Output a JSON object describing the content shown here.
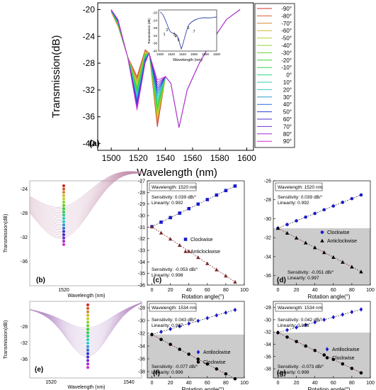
{
  "colors": {
    "c1": "#1a1acc",
    "c2": "#7a2828",
    "c3": "#000000",
    "grey": "#cccccc",
    "plus": "#cc2255"
  },
  "chart_data": [
    {
      "id": "a",
      "type": "line",
      "panel_label": "(a)",
      "xlabel": "Wavelength (nm)",
      "ylabel": "Transmission(dB)",
      "xlim": [
        1490,
        1605
      ],
      "ylim": [
        -41,
        -19
      ],
      "xticks": [
        "1500",
        "1520",
        "1540",
        "1560",
        "1580",
        "1600"
      ],
      "yticks": [
        "-20",
        "-24",
        "-28",
        "-32",
        "-36",
        "-40"
      ],
      "legend": [
        "-90°",
        "-80°",
        "-70°",
        "-60°",
        "-50°",
        "-40°",
        "-30°",
        "-20°",
        "-10°",
        "0°",
        "10°",
        "20°",
        "30°",
        "40°",
        "50°",
        "60°",
        "70°",
        "80°",
        "90°"
      ],
      "legend_position": "right",
      "inset": {
        "xlabel": "Wavelength (nm)",
        "ylabel": "Transmission (dB)",
        "xticks": [
          "1500",
          "1520",
          "1540",
          "1560",
          "1580",
          "1600"
        ],
        "yticks": [
          "-20",
          "-24",
          "-28",
          "-32",
          "-36",
          "-40"
        ],
        "points": [
          "1",
          "2",
          "3",
          "4",
          "5",
          "6",
          "7"
        ]
      }
    },
    {
      "id": "b",
      "type": "line",
      "panel_label": "(b)",
      "xlabel": "Wavelength (nm)",
      "ylabel": "Transmission(dB)",
      "xticks": [
        "1520"
      ],
      "yticks": [
        "-24",
        "-28",
        "-32",
        "-36"
      ]
    },
    {
      "id": "c",
      "type": "scatter",
      "panel_label": "(c)",
      "xlabel": "Rotation angle(°)",
      "ylim": [
        -36,
        -27
      ],
      "yticks": [
        "-27",
        "-28",
        "-29",
        "-30",
        "-31",
        "-32",
        "-33",
        "-34",
        "-35",
        "-36"
      ],
      "xticks": [
        "0",
        "20",
        "40",
        "60",
        "80",
        "100"
      ],
      "info": "Wavelength: 1520 nm",
      "series": [
        {
          "name": "Clockwise",
          "sensitivity": "Sensitivity: 0.039 dB/°",
          "linearity": "Linearity: 0.992",
          "x": [
            0,
            10,
            20,
            30,
            40,
            50,
            60,
            70,
            80,
            90
          ],
          "y": [
            -30.96,
            -30.57,
            -30.18,
            -29.79,
            -29.4,
            -29.01,
            -28.62,
            -28.23,
            -27.84,
            -27.45
          ]
        },
        {
          "name": "Anticlockwise",
          "sensitivity": "Sensitivity: -0.053 dB/°",
          "linearity": "Linearity: 0.998",
          "x": [
            0,
            10,
            20,
            30,
            40,
            50,
            60,
            70,
            80,
            90
          ],
          "y": [
            -30.96,
            -31.49,
            -32.02,
            -32.55,
            -33.08,
            -33.61,
            -34.14,
            -34.67,
            -35.2,
            -35.73
          ]
        }
      ]
    },
    {
      "id": "d",
      "type": "scatter",
      "panel_label": "(d)",
      "xlabel": "Rotation angle(°)",
      "ylim": [
        -37,
        -26
      ],
      "yticks": [
        "-26",
        "-28",
        "-30",
        "-32",
        "-34",
        "-36"
      ],
      "xticks": [
        "0",
        "20",
        "40",
        "60",
        "80",
        "100"
      ],
      "info": "Wavelength: 1520 nm",
      "series": [
        {
          "name": "Clockwise",
          "sensitivity": "Sensitivity: 0.039 dB/°",
          "linearity": "Linearity: 0.992",
          "x": [
            0,
            10,
            20,
            30,
            40,
            50,
            60,
            70,
            80,
            90
          ],
          "y": [
            -31.0,
            -30.61,
            -30.22,
            -29.83,
            -29.44,
            -29.05,
            -28.66,
            -28.27,
            -27.88,
            -27.49
          ]
        },
        {
          "name": "Anticlockwise",
          "sensitivity": "Sensitivity: -0.051 dB/°",
          "linearity": "Linearity: 0.997",
          "x": [
            0,
            10,
            20,
            30,
            40,
            50,
            60,
            70,
            80,
            90
          ],
          "y": [
            -31.0,
            -31.51,
            -32.02,
            -32.53,
            -33.04,
            -33.55,
            -34.06,
            -34.57,
            -35.08,
            -35.59
          ]
        }
      ]
    },
    {
      "id": "e",
      "type": "line",
      "panel_label": "(e)",
      "xlabel": "Wavelength (nm)",
      "ylabel": "Transmission(dB)",
      "xticks": [
        "1520",
        "1540"
      ],
      "yticks": [
        "-28",
        "-32",
        "-36"
      ]
    },
    {
      "id": "f",
      "type": "scatter",
      "panel_label": "(f)",
      "xlabel": "Rotation angle(°)",
      "ylim": [
        -39,
        -27
      ],
      "yticks": [
        "-28",
        "-30",
        "-32",
        "-34",
        "-36",
        "-38"
      ],
      "xticks": [
        "0",
        "20",
        "40",
        "60",
        "80",
        "100"
      ],
      "info": "Wavelength: 1534 nm",
      "series": [
        {
          "name": "Antilockwise",
          "sensitivity": "Sensitivity: 0.043 dB/°",
          "linearity": "Linearity: 0.987",
          "x": [
            0,
            10,
            20,
            30,
            40,
            50,
            60,
            70,
            80,
            90
          ],
          "y": [
            -32.2,
            -31.77,
            -31.34,
            -30.91,
            -30.48,
            -30.05,
            -29.62,
            -29.19,
            -28.76,
            -28.33
          ]
        },
        {
          "name": "Clockwise",
          "sensitivity": "Sensitivity: -0.077 dB/°",
          "linearity": "Linearity: 0.999",
          "x": [
            0,
            10,
            20,
            30,
            40,
            50,
            60,
            70,
            80,
            90
          ],
          "y": [
            -32.2,
            -32.97,
            -33.74,
            -34.51,
            -35.28,
            -36.05,
            -36.82,
            -37.59,
            -38.36,
            -39.13
          ]
        }
      ]
    },
    {
      "id": "g",
      "type": "scatter",
      "panel_label": "(g)",
      "xlabel": "Rotation angle(°)",
      "ylim": [
        -39.5,
        -27
      ],
      "yticks": [
        "-28",
        "-30",
        "-32",
        "-34",
        "-36",
        "-38"
      ],
      "xticks": [
        "0",
        "20",
        "40",
        "60",
        "80",
        "100"
      ],
      "info": "Wavelength: 1534 nm",
      "series": [
        {
          "name": "Antilockwise",
          "sensitivity": "Sensitivity: 0.042 dB/°",
          "linearity": "Linearity: 0.988",
          "x": [
            0,
            10,
            20,
            30,
            40,
            50,
            60,
            70,
            80,
            90
          ],
          "y": [
            -32.1,
            -31.68,
            -31.26,
            -30.84,
            -30.42,
            -30.0,
            -29.58,
            -29.16,
            -28.74,
            -28.32
          ]
        },
        {
          "name": "Clockwise",
          "sensitivity": "Sensitivity: -0.073 dB/°",
          "linearity": "Linearity: 0.999",
          "x": [
            0,
            10,
            20,
            30,
            40,
            50,
            60,
            70,
            80,
            90
          ],
          "y": [
            -32.1,
            -32.83,
            -33.56,
            -34.29,
            -35.02,
            -35.75,
            -36.48,
            -37.21,
            -37.94,
            -38.67
          ]
        }
      ]
    }
  ]
}
